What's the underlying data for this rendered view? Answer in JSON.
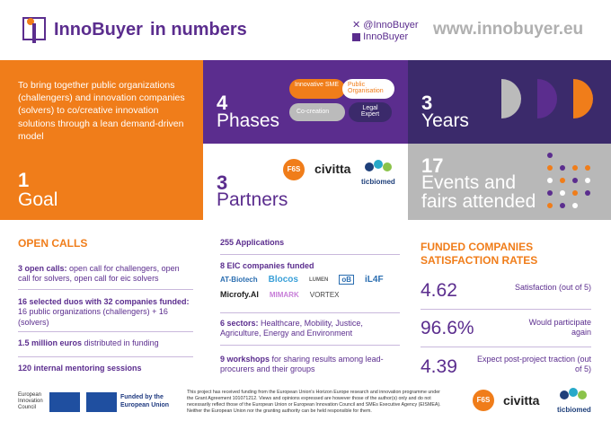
{
  "header": {
    "logo": "InnoBuyer",
    "title": "in numbers",
    "twitter": "@InnoBuyer",
    "linkedin": "InnoBuyer",
    "website": "www.innobuyer.eu"
  },
  "goal": {
    "description": "To bring together public organizations (challengers) and innovation companies (solvers) to co/creative innovation solutions through a lean demand-driven model",
    "number": "1",
    "label": "Goal"
  },
  "phases": {
    "number": "4",
    "label": "Phases",
    "steps": [
      "Innovative SME",
      "Public Organisation",
      "Co-creation",
      "Legal Expert"
    ]
  },
  "years": {
    "number": "3",
    "label": "Years"
  },
  "partners": {
    "number": "3",
    "label": "Partners",
    "logos": [
      "F6S",
      "civitta",
      "ticbiomed"
    ]
  },
  "events": {
    "number": "17",
    "label": "Events and fairs attended"
  },
  "open_calls": {
    "title": "OPEN CALLS",
    "items": [
      {
        "bold": "3 open calls:",
        "text": "open call for challengers, open call for solvers, open call for eic solvers"
      },
      {
        "bold": "16 selected duos with 32 companies funded:",
        "text": "16 public organizations (challengers) + 16 (solvers)"
      },
      {
        "bold": "1.5 million euros",
        "text": "distributed in funding"
      },
      {
        "bold": "120 internal mentoring sessions"
      }
    ]
  },
  "results": {
    "items": [
      {
        "bold": "255 Applications"
      },
      {
        "bold": "8 EIC companies funded",
        "logos": [
          "AT-Biotech",
          "Blocos",
          "LUMEN",
          "oB",
          "iL4F",
          "Microfy.AI",
          "MIMARK",
          "VORTEX"
        ]
      },
      {
        "bold": "6 sectors:",
        "text": "Healthcare, Mobility, Justice, Agriculture, Energy and Environment"
      },
      {
        "bold": "9 workshops",
        "text": "for sharing results among lead-procurers and their groups"
      }
    ]
  },
  "satisfaction": {
    "title": "FUNDED COMPANIES SATISFACTION RATES",
    "rows": [
      {
        "value": "4.62",
        "label": "Satisfaction (out of 5)"
      },
      {
        "value": "96.6%",
        "label": "Would participate again"
      },
      {
        "value": "4.39",
        "label": "Expect post-project traction (out of 5)"
      }
    ]
  },
  "footer": {
    "eic": "European Innovation Council",
    "funded": "Funded by the European Union",
    "disclaimer": "This project has received funding from the European Union's Horizon Europe research and innovation programme under the Grant Agreement 101071212. Views and opinions expressed are however those of the author(s) only and do not necessarily reflect those of the European Union or European Innovation Council and SMEs Executive Agency (EISMEA). Neither the European Union nor the granting authority can be held responsible for them.",
    "logos": [
      "F6S",
      "civitta",
      "ticbiomed"
    ]
  }
}
